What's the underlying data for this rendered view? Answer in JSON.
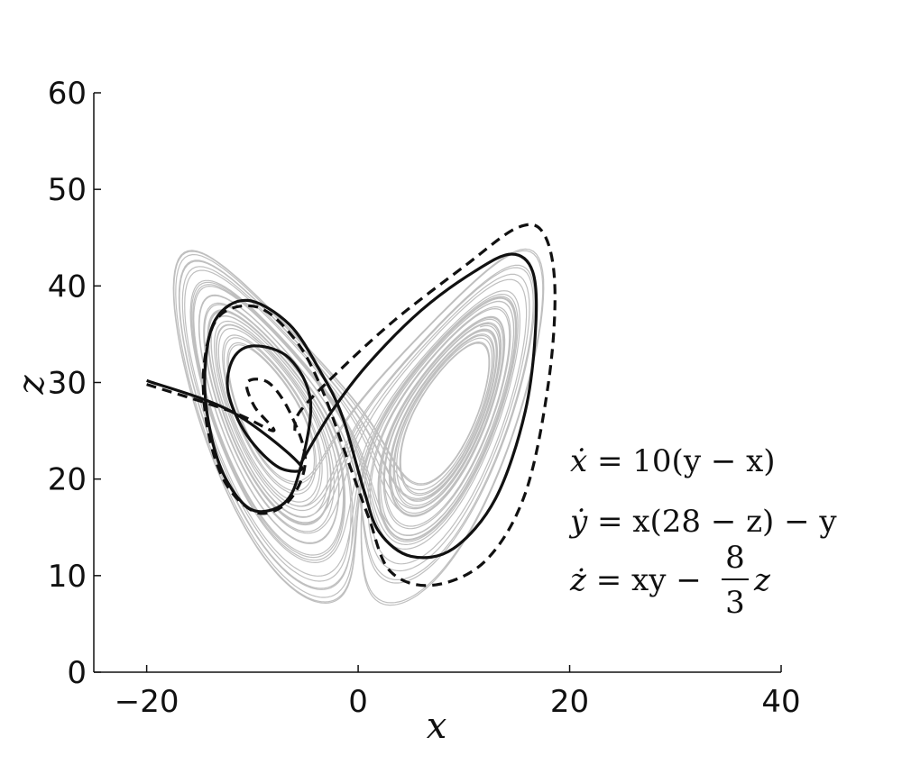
{
  "chart_data": {
    "type": "line",
    "title": "",
    "xlabel": "x",
    "ylabel": "z",
    "xlim": [
      -25,
      40
    ],
    "ylim": [
      0,
      60
    ],
    "xticks": [
      -20,
      0,
      20,
      40
    ],
    "yticks": [
      0,
      10,
      20,
      30,
      40,
      50,
      60
    ],
    "xtick_labels": [
      "−20",
      "0",
      "20",
      "40"
    ],
    "ytick_labels": [
      "0",
      "10",
      "20",
      "30",
      "40",
      "50",
      "60"
    ],
    "grid": false,
    "legend": "none",
    "series": [
      {
        "style": "thin-gray",
        "color": "#b4b4b4",
        "description_visible": false,
        "lorenz_params": {
          "sigma": 10,
          "rho": 28,
          "beta": 2.6667
        },
        "start": [
          0.0,
          1.0,
          20.0
        ]
      },
      {
        "style": "solid-black",
        "color": "#111111",
        "values": [
          [
            -20,
            30.2
          ],
          [
            -12,
            27.0
          ],
          [
            -5.5,
            21.5
          ],
          [
            -7.5,
            21.2
          ],
          [
            -10.5,
            24.5
          ],
          [
            -12.3,
            29
          ],
          [
            -11.8,
            32.5
          ],
          [
            -9.8,
            33.8
          ],
          [
            -6.5,
            32.5
          ],
          [
            -4.5,
            28.0
          ],
          [
            -5.5,
            21.0
          ],
          [
            -7.0,
            17.5
          ],
          [
            -10.0,
            16.8
          ],
          [
            -12.5,
            20.0
          ],
          [
            -14.0,
            25.0
          ],
          [
            -14.5,
            31.0
          ],
          [
            -13.5,
            36.5
          ],
          [
            -10.5,
            38.5
          ],
          [
            -6.5,
            36.0
          ],
          [
            -3.5,
            31.0
          ],
          [
            -1.5,
            26.5
          ],
          [
            0.5,
            19.0
          ],
          [
            2.0,
            14.5
          ],
          [
            5.0,
            12.0
          ],
          [
            9.0,
            12.8
          ],
          [
            13.0,
            18.0
          ],
          [
            15.8,
            27.0
          ],
          [
            16.8,
            36.0
          ],
          [
            16.5,
            41.5
          ],
          [
            14.5,
            43.3
          ],
          [
            11.0,
            41.5
          ],
          [
            6.0,
            37.5
          ],
          [
            1.0,
            32.0
          ],
          [
            -2.5,
            27.0
          ],
          [
            -5.5,
            21.5
          ]
        ]
      },
      {
        "style": "dashed-black",
        "color": "#111111",
        "values": [
          [
            -20,
            29.8
          ],
          [
            -12,
            27.0
          ],
          [
            -8.0,
            25.0
          ],
          [
            -9.8,
            27.5
          ],
          [
            -10.5,
            30.0
          ],
          [
            -8.5,
            30.0
          ],
          [
            -6.5,
            27.0
          ],
          [
            -5.0,
            22.0
          ],
          [
            -6.5,
            17.8
          ],
          [
            -9.5,
            16.5
          ],
          [
            -12.5,
            19.5
          ],
          [
            -14.2,
            25.0
          ],
          [
            -14.6,
            31.5
          ],
          [
            -13.2,
            36.8
          ],
          [
            -9.5,
            37.8
          ],
          [
            -6.0,
            34.5
          ],
          [
            -3.5,
            29.5
          ],
          [
            -1.0,
            22.0
          ],
          [
            1.0,
            16.0
          ],
          [
            3.0,
            10.5
          ],
          [
            7.0,
            9.0
          ],
          [
            12.0,
            11.5
          ],
          [
            15.8,
            18.5
          ],
          [
            18.0,
            30.0
          ],
          [
            18.6,
            40.0
          ],
          [
            17.5,
            45.5
          ],
          [
            15.0,
            46.0
          ],
          [
            10.0,
            42.0
          ],
          [
            3.5,
            36.5
          ],
          [
            -2.0,
            31.0
          ],
          [
            -5.5,
            27.0
          ],
          [
            -6.0,
            25.0
          ]
        ]
      }
    ],
    "annotations": {
      "eq1": {
        "lhs": "ẋ",
        "rhs": " = 10(y − x)"
      },
      "eq2": {
        "lhs": "ẏ",
        "rhs": " = x(28 − z) − y"
      },
      "eq3_lhs": "ż",
      "eq3_mid": " = xy − ",
      "eq3_num": "8",
      "eq3_den": "3",
      "eq3_end": "z"
    }
  }
}
